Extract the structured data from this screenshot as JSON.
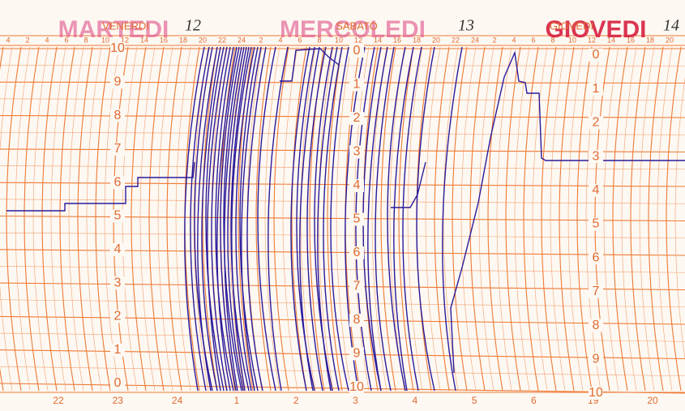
{
  "stamps": [
    "MARTEDI",
    "MERCOLEDI",
    "GIOVEDI"
  ],
  "day_labels": [
    "VENERDI",
    "SABATO",
    "GIOVEDI"
  ],
  "handwritten": [
    "12",
    "13",
    "14"
  ],
  "top_hours": [
    "4",
    "2",
    "4",
    "6",
    "8",
    "10",
    "12",
    "14",
    "16",
    "18",
    "20",
    "22",
    "24",
    "2",
    "4",
    "6",
    "8",
    "10",
    "12",
    "14",
    "16",
    "18",
    "20",
    "22",
    "24",
    "2",
    "4",
    "6",
    "8",
    "10",
    "12",
    "14",
    "16",
    "18",
    "20"
  ],
  "bottom_hours": [
    "22",
    "23",
    "24",
    "1",
    "2",
    "3",
    "4",
    "5",
    "6",
    "19",
    "20"
  ],
  "scales": [
    [
      "10",
      "9",
      "8",
      "7",
      "6",
      "5",
      "4",
      "3",
      "2",
      "1",
      "0"
    ],
    [
      "0",
      "1",
      "2",
      "3",
      "4",
      "5",
      "6",
      "7",
      "8",
      "9",
      "10"
    ],
    [
      "0",
      "1",
      "2",
      "3",
      "4",
      "5",
      "6",
      "7",
      "8",
      "9",
      "10"
    ]
  ]
}
